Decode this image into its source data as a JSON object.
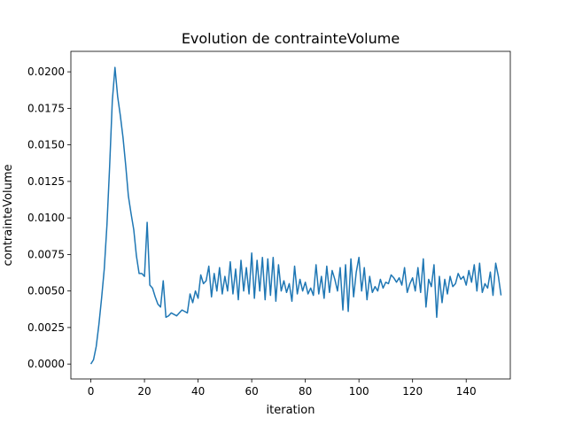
{
  "chart_data": {
    "type": "line",
    "title": "Evolution de contrainteVolume",
    "xlabel": "iteration",
    "ylabel": "contrainteVolume",
    "xlim": [
      -7.45,
      156.45
    ],
    "ylim": [
      -0.00102,
      0.0214
    ],
    "xticks": [
      0,
      20,
      40,
      60,
      80,
      100,
      120,
      140
    ],
    "yticks": [
      0.0,
      0.0025,
      0.005,
      0.0075,
      0.01,
      0.0125,
      0.015,
      0.0175,
      0.02
    ],
    "xtick_labels": [
      "0",
      "20",
      "40",
      "60",
      "80",
      "100",
      "120",
      "140"
    ],
    "ytick_labels": [
      "0.0000",
      "0.0025",
      "0.0050",
      "0.0075",
      "0.0100",
      "0.0125",
      "0.0150",
      "0.0175",
      "0.0200"
    ],
    "grid": false,
    "color": "#1f77b4",
    "series": [
      {
        "values": [
          0.0,
          0.0003,
          0.0012,
          0.0027,
          0.0045,
          0.0065,
          0.0095,
          0.0135,
          0.018,
          0.0203,
          0.0183,
          0.017,
          0.0155,
          0.0136,
          0.0115,
          0.0103,
          0.0092,
          0.0074,
          0.0062,
          0.0062,
          0.006,
          0.0097,
          0.0054,
          0.0052,
          0.0046,
          0.0041,
          0.0039,
          0.0057,
          0.0032,
          0.0033,
          0.0035,
          0.0034,
          0.0033,
          0.0035,
          0.0037,
          0.0036,
          0.0035,
          0.0048,
          0.0042,
          0.005,
          0.0045,
          0.0061,
          0.0055,
          0.0057,
          0.0067,
          0.0046,
          0.0062,
          0.005,
          0.0066,
          0.0048,
          0.006,
          0.005,
          0.007,
          0.0048,
          0.0065,
          0.0044,
          0.0071,
          0.005,
          0.0066,
          0.0048,
          0.0076,
          0.0045,
          0.0071,
          0.005,
          0.0073,
          0.0044,
          0.0072,
          0.0047,
          0.0073,
          0.0043,
          0.0068,
          0.005,
          0.0057,
          0.0049,
          0.0055,
          0.0043,
          0.0067,
          0.0048,
          0.0058,
          0.005,
          0.0056,
          0.0048,
          0.0052,
          0.0047,
          0.0068,
          0.0048,
          0.006,
          0.0045,
          0.0067,
          0.0049,
          0.0064,
          0.0058,
          0.005,
          0.0066,
          0.0037,
          0.0068,
          0.0036,
          0.0072,
          0.0046,
          0.0063,
          0.0073,
          0.005,
          0.0066,
          0.0044,
          0.006,
          0.0049,
          0.0053,
          0.005,
          0.0058,
          0.0052,
          0.0056,
          0.0055,
          0.0061,
          0.0059,
          0.0056,
          0.0059,
          0.0054,
          0.0066,
          0.0049,
          0.0055,
          0.0059,
          0.005,
          0.0066,
          0.0049,
          0.0072,
          0.0039,
          0.0058,
          0.0053,
          0.0068,
          0.0032,
          0.006,
          0.0042,
          0.0058,
          0.0048,
          0.006,
          0.0053,
          0.0055,
          0.0062,
          0.0058,
          0.006,
          0.0054,
          0.0064,
          0.0056,
          0.0068,
          0.005,
          0.0069,
          0.0049,
          0.0055,
          0.0052,
          0.0063,
          0.0047,
          0.0069,
          0.006,
          0.0047
        ]
      }
    ]
  }
}
